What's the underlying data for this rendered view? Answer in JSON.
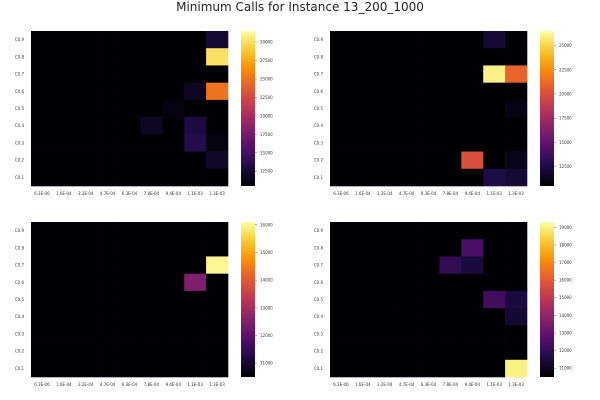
{
  "chart_data": {
    "title": "Minimum Calls for Instance 13_200_1000",
    "type": "heatmap",
    "x_categories": [
      "6.3E-06",
      "1.6E-04",
      "3.2E-04",
      "4.7E-04",
      "6.3E-04",
      "7.8E-04",
      "9.4E-04",
      "1.1E-03",
      "1.3E-03"
    ],
    "y_categories": [
      "C0.9",
      "C0.8",
      "C0.7",
      "C0.6",
      "C0.5",
      "C0.4",
      "C0.3",
      "C0.2",
      "C0.1"
    ],
    "colormap": "inferno",
    "panels": [
      {
        "zlim": [
          10500,
          31500
        ],
        "colorbar_ticks": [
          "30000",
          "27500",
          "25000",
          "22500",
          "20000",
          "17500",
          "15000",
          "12500"
        ],
        "colorbar_tick_values": [
          30000,
          27500,
          25000,
          22500,
          20000,
          17500,
          15000,
          12500
        ],
        "values": [
          [
            10500,
            10500,
            10500,
            10500,
            10500,
            10500,
            10500,
            10500,
            12500
          ],
          [
            10500,
            10500,
            10500,
            10500,
            10500,
            10500,
            10500,
            10500,
            30000
          ],
          [
            10500,
            10500,
            10500,
            10500,
            10500,
            10500,
            10500,
            10500,
            10500
          ],
          [
            10500,
            10500,
            10500,
            10500,
            10500,
            10500,
            10500,
            11800,
            25000
          ],
          [
            10500,
            10500,
            10500,
            10500,
            10500,
            10500,
            11000,
            10500,
            10500
          ],
          [
            10500,
            10500,
            10500,
            10500,
            10500,
            11800,
            10500,
            13000,
            10500
          ],
          [
            10500,
            10500,
            10500,
            10500,
            10500,
            10500,
            10500,
            13500,
            11000
          ],
          [
            10500,
            10500,
            10500,
            10500,
            10500,
            10500,
            10500,
            10500,
            12000
          ],
          [
            10500,
            10500,
            10500,
            10500,
            10500,
            10500,
            10500,
            10500,
            10500
          ]
        ]
      },
      {
        "zlim": [
          10500,
          26500
        ],
        "colorbar_ticks": [
          "25000",
          "22500",
          "20000",
          "17500",
          "15000",
          "12500"
        ],
        "colorbar_tick_values": [
          25000,
          22500,
          20000,
          17500,
          15000,
          12500
        ],
        "values": [
          [
            10500,
            10500,
            10500,
            10500,
            10500,
            10500,
            10500,
            12000,
            10500
          ],
          [
            10500,
            10500,
            10500,
            10500,
            10500,
            10500,
            10500,
            10500,
            10500
          ],
          [
            10500,
            10500,
            10500,
            10500,
            10500,
            10500,
            10500,
            26000,
            21000
          ],
          [
            10500,
            10500,
            10500,
            10500,
            10500,
            10500,
            10500,
            10500,
            10500
          ],
          [
            10500,
            10500,
            10500,
            10500,
            10500,
            10500,
            10500,
            10500,
            11000
          ],
          [
            10500,
            10500,
            10500,
            10500,
            10500,
            10500,
            10500,
            10500,
            10500
          ],
          [
            10500,
            10500,
            10500,
            10500,
            10500,
            10500,
            10500,
            10500,
            10500
          ],
          [
            10500,
            10500,
            10500,
            10500,
            10500,
            10500,
            20000,
            10500,
            11200
          ],
          [
            10500,
            10500,
            10500,
            10500,
            10500,
            10500,
            10500,
            12500,
            12000
          ]
        ]
      },
      {
        "zlim": [
          10500,
          16100
        ],
        "colorbar_ticks": [
          "16000",
          "15000",
          "14000",
          "13000",
          "12000",
          "11000"
        ],
        "colorbar_tick_values": [
          16000,
          15000,
          14000,
          13000,
          12000,
          11000
        ],
        "values": [
          [
            10500,
            10500,
            10500,
            10500,
            10500,
            10500,
            10500,
            10500,
            10500
          ],
          [
            10500,
            10500,
            10500,
            10500,
            10500,
            10500,
            10500,
            10500,
            10500
          ],
          [
            10500,
            10500,
            10500,
            10500,
            10500,
            10500,
            10500,
            10500,
            16000
          ],
          [
            10500,
            10500,
            10500,
            10500,
            10500,
            10500,
            10500,
            12500,
            10500
          ],
          [
            10500,
            10500,
            10500,
            10500,
            10500,
            10500,
            10500,
            10500,
            10500
          ],
          [
            10500,
            10500,
            10500,
            10500,
            10500,
            10500,
            10500,
            10500,
            10500
          ],
          [
            10500,
            10500,
            10500,
            10500,
            10500,
            10500,
            10500,
            10500,
            10500
          ],
          [
            10500,
            10500,
            10500,
            10500,
            10500,
            10500,
            10500,
            10500,
            10500
          ],
          [
            10500,
            10500,
            10500,
            10500,
            10500,
            10500,
            10500,
            10500,
            10500
          ]
        ]
      },
      {
        "zlim": [
          10500,
          19300
        ],
        "colorbar_ticks": [
          "19000",
          "18000",
          "17000",
          "16000",
          "15000",
          "14000",
          "13000",
          "12000",
          "11000"
        ],
        "colorbar_tick_values": [
          19000,
          18000,
          17000,
          16000,
          15000,
          14000,
          13000,
          12000,
          11000
        ],
        "values": [
          [
            10500,
            10500,
            10500,
            10500,
            10500,
            10500,
            10500,
            10500,
            10500
          ],
          [
            10500,
            10500,
            10500,
            10500,
            10500,
            10500,
            12500,
            10500,
            10500
          ],
          [
            10500,
            10500,
            10500,
            10500,
            10500,
            12000,
            11500,
            10500,
            10500
          ],
          [
            10500,
            10500,
            10500,
            10500,
            10500,
            10500,
            10500,
            10500,
            10500
          ],
          [
            10500,
            10500,
            10500,
            10500,
            10500,
            10500,
            10500,
            12300,
            11500
          ],
          [
            10500,
            10500,
            10500,
            10500,
            10500,
            10500,
            10500,
            10500,
            11300
          ],
          [
            10500,
            10500,
            10500,
            10500,
            10500,
            10500,
            10500,
            10500,
            10500
          ],
          [
            10500,
            10500,
            10500,
            10500,
            10500,
            10500,
            10500,
            10500,
            10500
          ],
          [
            10500,
            10500,
            10500,
            10500,
            10500,
            10500,
            10500,
            10500,
            19000
          ]
        ]
      }
    ]
  }
}
